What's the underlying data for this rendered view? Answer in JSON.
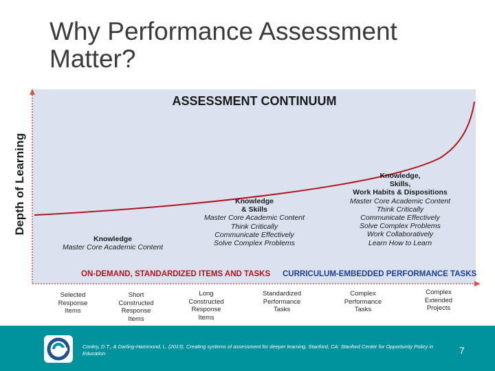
{
  "title": "Why Performance Assessment Matter?",
  "diagram": {
    "heading": "ASSESSMENT CONTINUUM",
    "y_axis_label": "Depth of Learning",
    "levels": [
      {
        "heading": "Knowledge",
        "lines": [
          "Master Core Academic Content"
        ]
      },
      {
        "heading": "Knowledge\n& Skills",
        "lines": [
          "Master Core Academic Content",
          "Think Critically",
          "Communicate Effectively",
          "Solve Complex Problems"
        ]
      },
      {
        "heading": "Knowledge,\nSkills,\nWork Habits & Dispositions",
        "lines": [
          "Master Core Academic Content",
          "Think Critically",
          "Communicate Effectively",
          "Solve Complex Problems",
          "Work Collaboratively",
          "Learn How to Learn"
        ]
      }
    ],
    "band_left": "ON-DEMAND, STANDARDIZED ITEMS AND TASKS",
    "band_right": "CURRICULUM-EMBEDDED PERFORMANCE TASKS",
    "colors": {
      "panel": "#d9e2ee",
      "curve": "#b5121b",
      "axis": "#d9534f",
      "band_left": "#b5121b",
      "band_right": "#1f3d99",
      "footer": "#00939e"
    },
    "tasks": [
      "Selected\nResponse\nItems",
      "Short\nConstructed\nResponse\nItems",
      "Long\nConstructed\nResponse\nItems",
      "Standardized\nPerformance\nTasks",
      "Complex\nPerformance\nTasks",
      "Complex\nExtended\nProjects"
    ]
  },
  "footer": {
    "citation": "Conley, D.T., & Darling-Hammond, L. (2013). Creating systems of assessment for deeper learning. Stanford, CA: Stanford Center for Opportunity Policy in Education",
    "page_number": "7",
    "logo_icon": "scope-logo-icon"
  }
}
